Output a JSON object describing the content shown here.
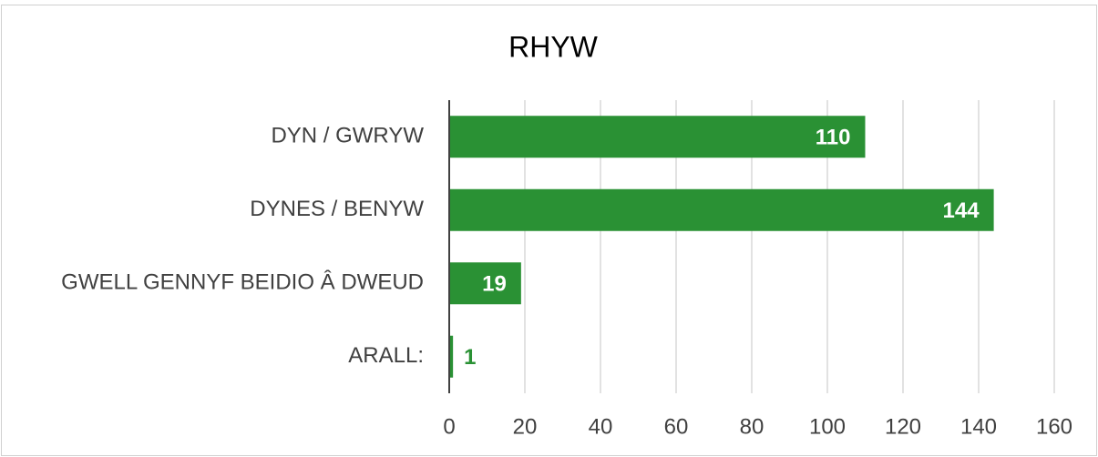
{
  "chart_data": {
    "type": "bar",
    "orientation": "horizontal",
    "title": "RHYW",
    "categories": [
      "DYN / GWRYW",
      "DYNES / BENYW",
      "GWELL GENNYF BEIDIO Â DWEUD",
      "ARALL:"
    ],
    "values": [
      110,
      144,
      19,
      1
    ],
    "color": "#2a9134",
    "xlim": [
      0,
      160
    ],
    "xticks": [
      0,
      20,
      40,
      60,
      80,
      100,
      120,
      140,
      160
    ],
    "grid": true
  }
}
